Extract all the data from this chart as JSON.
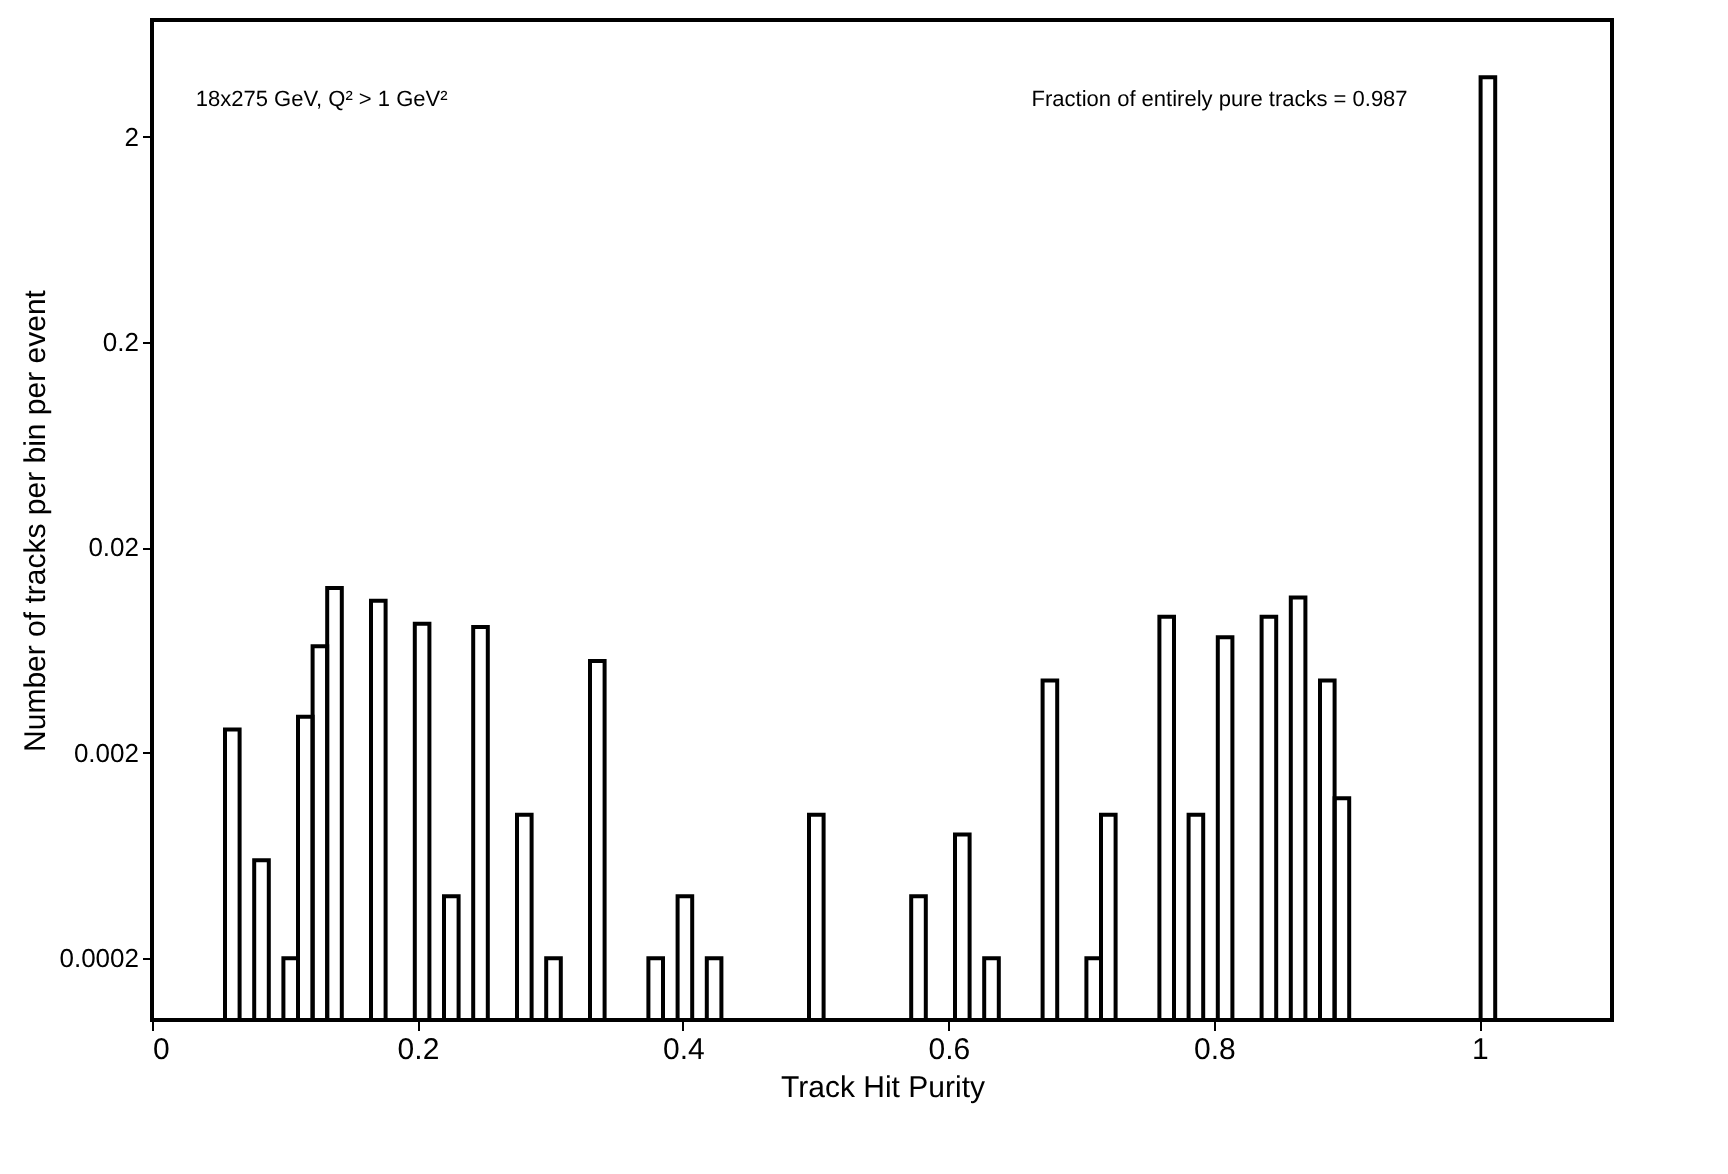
{
  "chart_data": {
    "type": "histogram",
    "xlabel": "Track Hit Purity",
    "ylabel": "Number of tracks per bin per event",
    "annotations": [
      "18x275 GeV, Q² > 1 GeV²",
      "Fraction of entirely pure tracks = 0.987"
    ],
    "bins": [
      0.055,
      0.066,
      0.077,
      0.088,
      0.099,
      0.11,
      0.121,
      0.132,
      0.143,
      0.154,
      0.165,
      0.176,
      0.187,
      0.198,
      0.209,
      0.22,
      0.231,
      0.242,
      0.253,
      0.264,
      0.275,
      0.286,
      0.297,
      0.308,
      0.319,
      0.33,
      0.341,
      0.352,
      0.363,
      0.374,
      0.385,
      0.396,
      0.407,
      0.418,
      0.429,
      0.44,
      0.451,
      0.462,
      0.473,
      0.484,
      0.495,
      0.506,
      0.517,
      0.528,
      0.539,
      0.55,
      0.561,
      0.572,
      0.583,
      0.594,
      0.605,
      0.616,
      0.627,
      0.638,
      0.649,
      0.66,
      0.671,
      0.682,
      0.693,
      0.704,
      0.715,
      0.726,
      0.737,
      0.748,
      0.759,
      0.77,
      0.781,
      0.792,
      0.803,
      0.814,
      0.825,
      0.836,
      0.847,
      0.858,
      0.869,
      0.88,
      0.891,
      0.902,
      0.913,
      0.924,
      0.935,
      0.946,
      0.957,
      0.968,
      0.979,
      0.99,
      1.001,
      1.012
    ],
    "values": [
      0.0026,
      null,
      0.0006,
      null,
      0.0002,
      0.003,
      0.0066,
      0.0127,
      null,
      null,
      0.011,
      null,
      null,
      0.0085,
      null,
      0.0004,
      null,
      0.0082,
      null,
      null,
      0.001,
      null,
      0.0002,
      null,
      null,
      0.0056,
      null,
      null,
      null,
      0.0002,
      null,
      0.0004,
      null,
      0.0002,
      null,
      null,
      null,
      null,
      null,
      null,
      0.001,
      null,
      null,
      null,
      null,
      null,
      null,
      0.0004,
      null,
      null,
      0.0008,
      null,
      0.0002,
      null,
      null,
      null,
      0.0045,
      null,
      null,
      0.0002,
      0.001,
      null,
      null,
      null,
      0.0092,
      null,
      0.001,
      null,
      0.0073,
      null,
      null,
      0.0092,
      null,
      0.0114,
      null,
      0.0045,
      0.0012,
      null,
      null,
      null,
      null,
      null,
      null,
      null,
      null,
      null,
      3.9
    ],
    "color": "#000000",
    "xlim": [
      0,
      1.1
    ],
    "xticks": [
      0,
      0.2,
      0.4,
      0.6,
      0.8,
      1
    ],
    "ylim": [
      0.0001,
      7.4
    ],
    "yticks": [
      0.0002,
      0.002,
      0.02,
      0.2,
      2
    ],
    "log": true,
    "grid": false
  }
}
